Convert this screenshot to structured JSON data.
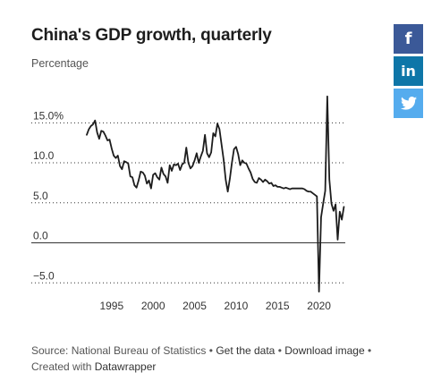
{
  "title": "China's GDP growth, quarterly",
  "subtitle": "Percentage",
  "share": {
    "facebook_icon": "facebook-icon",
    "facebook_label": "f",
    "linkedin_icon": "linkedin-icon",
    "linkedin_label": "in",
    "twitter_icon": "twitter-icon"
  },
  "footer": {
    "source_label": "Source: National Bureau of Statistics",
    "sep": " • ",
    "get_data": "Get the data",
    "download_image": "Download image",
    "created_with": "Created with ",
    "datawrapper": "Datawrapper"
  },
  "colors": {
    "line": "#1d1d1d",
    "grid": "#333333",
    "facebook": "#3b5998",
    "linkedin": "#0e76a8",
    "twitter": "#55acee"
  },
  "chart_data": {
    "type": "line",
    "title": "China's GDP growth, quarterly",
    "subtitle": "Percentage",
    "xlim": [
      1992,
      2023.6
    ],
    "ylim": [
      -6.2,
      18.5
    ],
    "y_ticks": [
      15,
      10,
      5,
      0,
      -5
    ],
    "y_tick_labels": [
      "15.0%",
      "10.0",
      "5.0",
      "0.0",
      "−5.0"
    ],
    "x_ticks": [
      1995,
      2000,
      2005,
      2010,
      2015,
      2020
    ],
    "x_tick_labels": [
      "1995",
      "2000",
      "2005",
      "2010",
      "2015",
      "2020"
    ],
    "grid": "horizontal dotted",
    "series": [
      {
        "points": [
          [
            1992.0,
            13.5
          ],
          [
            1992.25,
            14.2
          ],
          [
            1992.5,
            14.6
          ],
          [
            1992.75,
            14.8
          ],
          [
            1993.0,
            15.3
          ],
          [
            1993.25,
            13.8
          ],
          [
            1993.5,
            13.0
          ],
          [
            1993.75,
            14.0
          ],
          [
            1994.0,
            13.9
          ],
          [
            1994.25,
            13.4
          ],
          [
            1994.5,
            12.8
          ],
          [
            1994.75,
            12.9
          ],
          [
            1995.0,
            11.8
          ],
          [
            1995.25,
            10.9
          ],
          [
            1995.5,
            10.6
          ],
          [
            1995.75,
            10.9
          ],
          [
            1996.0,
            9.6
          ],
          [
            1996.25,
            9.2
          ],
          [
            1996.5,
            10.2
          ],
          [
            1996.75,
            10.1
          ],
          [
            1997.0,
            9.9
          ],
          [
            1997.25,
            8.3
          ],
          [
            1997.5,
            8.2
          ],
          [
            1997.75,
            7.2
          ],
          [
            1998.0,
            6.9
          ],
          [
            1998.25,
            7.8
          ],
          [
            1998.5,
            8.9
          ],
          [
            1998.75,
            8.8
          ],
          [
            1999.0,
            8.4
          ],
          [
            1999.25,
            7.4
          ],
          [
            1999.5,
            7.8
          ],
          [
            1999.75,
            6.8
          ],
          [
            2000.0,
            8.5
          ],
          [
            2000.25,
            8.7
          ],
          [
            2000.5,
            8.2
          ],
          [
            2000.75,
            7.9
          ],
          [
            2001.0,
            9.4
          ],
          [
            2001.25,
            8.6
          ],
          [
            2001.5,
            8.3
          ],
          [
            2001.75,
            7.5
          ],
          [
            2002.0,
            9.7
          ],
          [
            2002.25,
            9.0
          ],
          [
            2002.5,
            9.8
          ],
          [
            2002.75,
            9.7
          ],
          [
            2003.0,
            9.9
          ],
          [
            2003.25,
            9.1
          ],
          [
            2003.5,
            9.8
          ],
          [
            2003.75,
            10.0
          ],
          [
            2004.0,
            11.9
          ],
          [
            2004.25,
            10.0
          ],
          [
            2004.5,
            9.3
          ],
          [
            2004.75,
            9.6
          ],
          [
            2005.0,
            10.3
          ],
          [
            2005.25,
            11.2
          ],
          [
            2005.5,
            10.0
          ],
          [
            2005.75,
            10.8
          ],
          [
            2006.0,
            11.5
          ],
          [
            2006.25,
            13.5
          ],
          [
            2006.5,
            11.2
          ],
          [
            2006.75,
            10.7
          ],
          [
            2007.0,
            11.3
          ],
          [
            2007.25,
            13.7
          ],
          [
            2007.5,
            13.3
          ],
          [
            2007.75,
            14.9
          ],
          [
            2008.0,
            14.2
          ],
          [
            2008.25,
            12.3
          ],
          [
            2008.5,
            10.4
          ],
          [
            2008.75,
            7.9
          ],
          [
            2009.0,
            6.4
          ],
          [
            2009.25,
            8.0
          ],
          [
            2009.5,
            10.0
          ],
          [
            2009.75,
            11.7
          ],
          [
            2010.0,
            12.0
          ],
          [
            2010.25,
            11.1
          ],
          [
            2010.5,
            9.7
          ],
          [
            2010.75,
            10.3
          ],
          [
            2011.0,
            10.0
          ],
          [
            2011.25,
            9.9
          ],
          [
            2011.5,
            9.3
          ],
          [
            2011.75,
            8.8
          ],
          [
            2012.0,
            8.0
          ],
          [
            2012.25,
            7.6
          ],
          [
            2012.5,
            7.5
          ],
          [
            2012.75,
            8.1
          ],
          [
            2013.0,
            7.9
          ],
          [
            2013.25,
            7.6
          ],
          [
            2013.5,
            7.9
          ],
          [
            2013.75,
            7.7
          ],
          [
            2014.0,
            7.4
          ],
          [
            2014.25,
            7.5
          ],
          [
            2014.5,
            7.1
          ],
          [
            2014.75,
            7.2
          ],
          [
            2015.0,
            7.0
          ],
          [
            2015.25,
            7.0
          ],
          [
            2015.5,
            6.9
          ],
          [
            2015.75,
            6.8
          ],
          [
            2016.0,
            6.9
          ],
          [
            2016.25,
            6.8
          ],
          [
            2016.5,
            6.7
          ],
          [
            2016.75,
            6.8
          ],
          [
            2017.0,
            6.8
          ],
          [
            2017.25,
            6.8
          ],
          [
            2017.5,
            6.8
          ],
          [
            2017.75,
            6.8
          ],
          [
            2018.0,
            6.8
          ],
          [
            2018.25,
            6.7
          ],
          [
            2018.5,
            6.5
          ],
          [
            2018.75,
            6.4
          ],
          [
            2019.0,
            6.4
          ],
          [
            2019.25,
            6.2
          ],
          [
            2019.5,
            6.0
          ],
          [
            2019.75,
            5.8
          ],
          [
            2020.0,
            -6.1
          ],
          [
            2020.25,
            3.2
          ],
          [
            2020.5,
            4.9
          ],
          [
            2020.75,
            6.5
          ],
          [
            2021.0,
            18.3
          ],
          [
            2021.25,
            7.9
          ],
          [
            2021.5,
            4.9
          ],
          [
            2021.75,
            4.0
          ],
          [
            2022.0,
            4.8
          ],
          [
            2022.25,
            0.4
          ],
          [
            2022.5,
            3.9
          ],
          [
            2022.75,
            2.9
          ],
          [
            2023.0,
            4.5
          ]
        ]
      }
    ]
  }
}
